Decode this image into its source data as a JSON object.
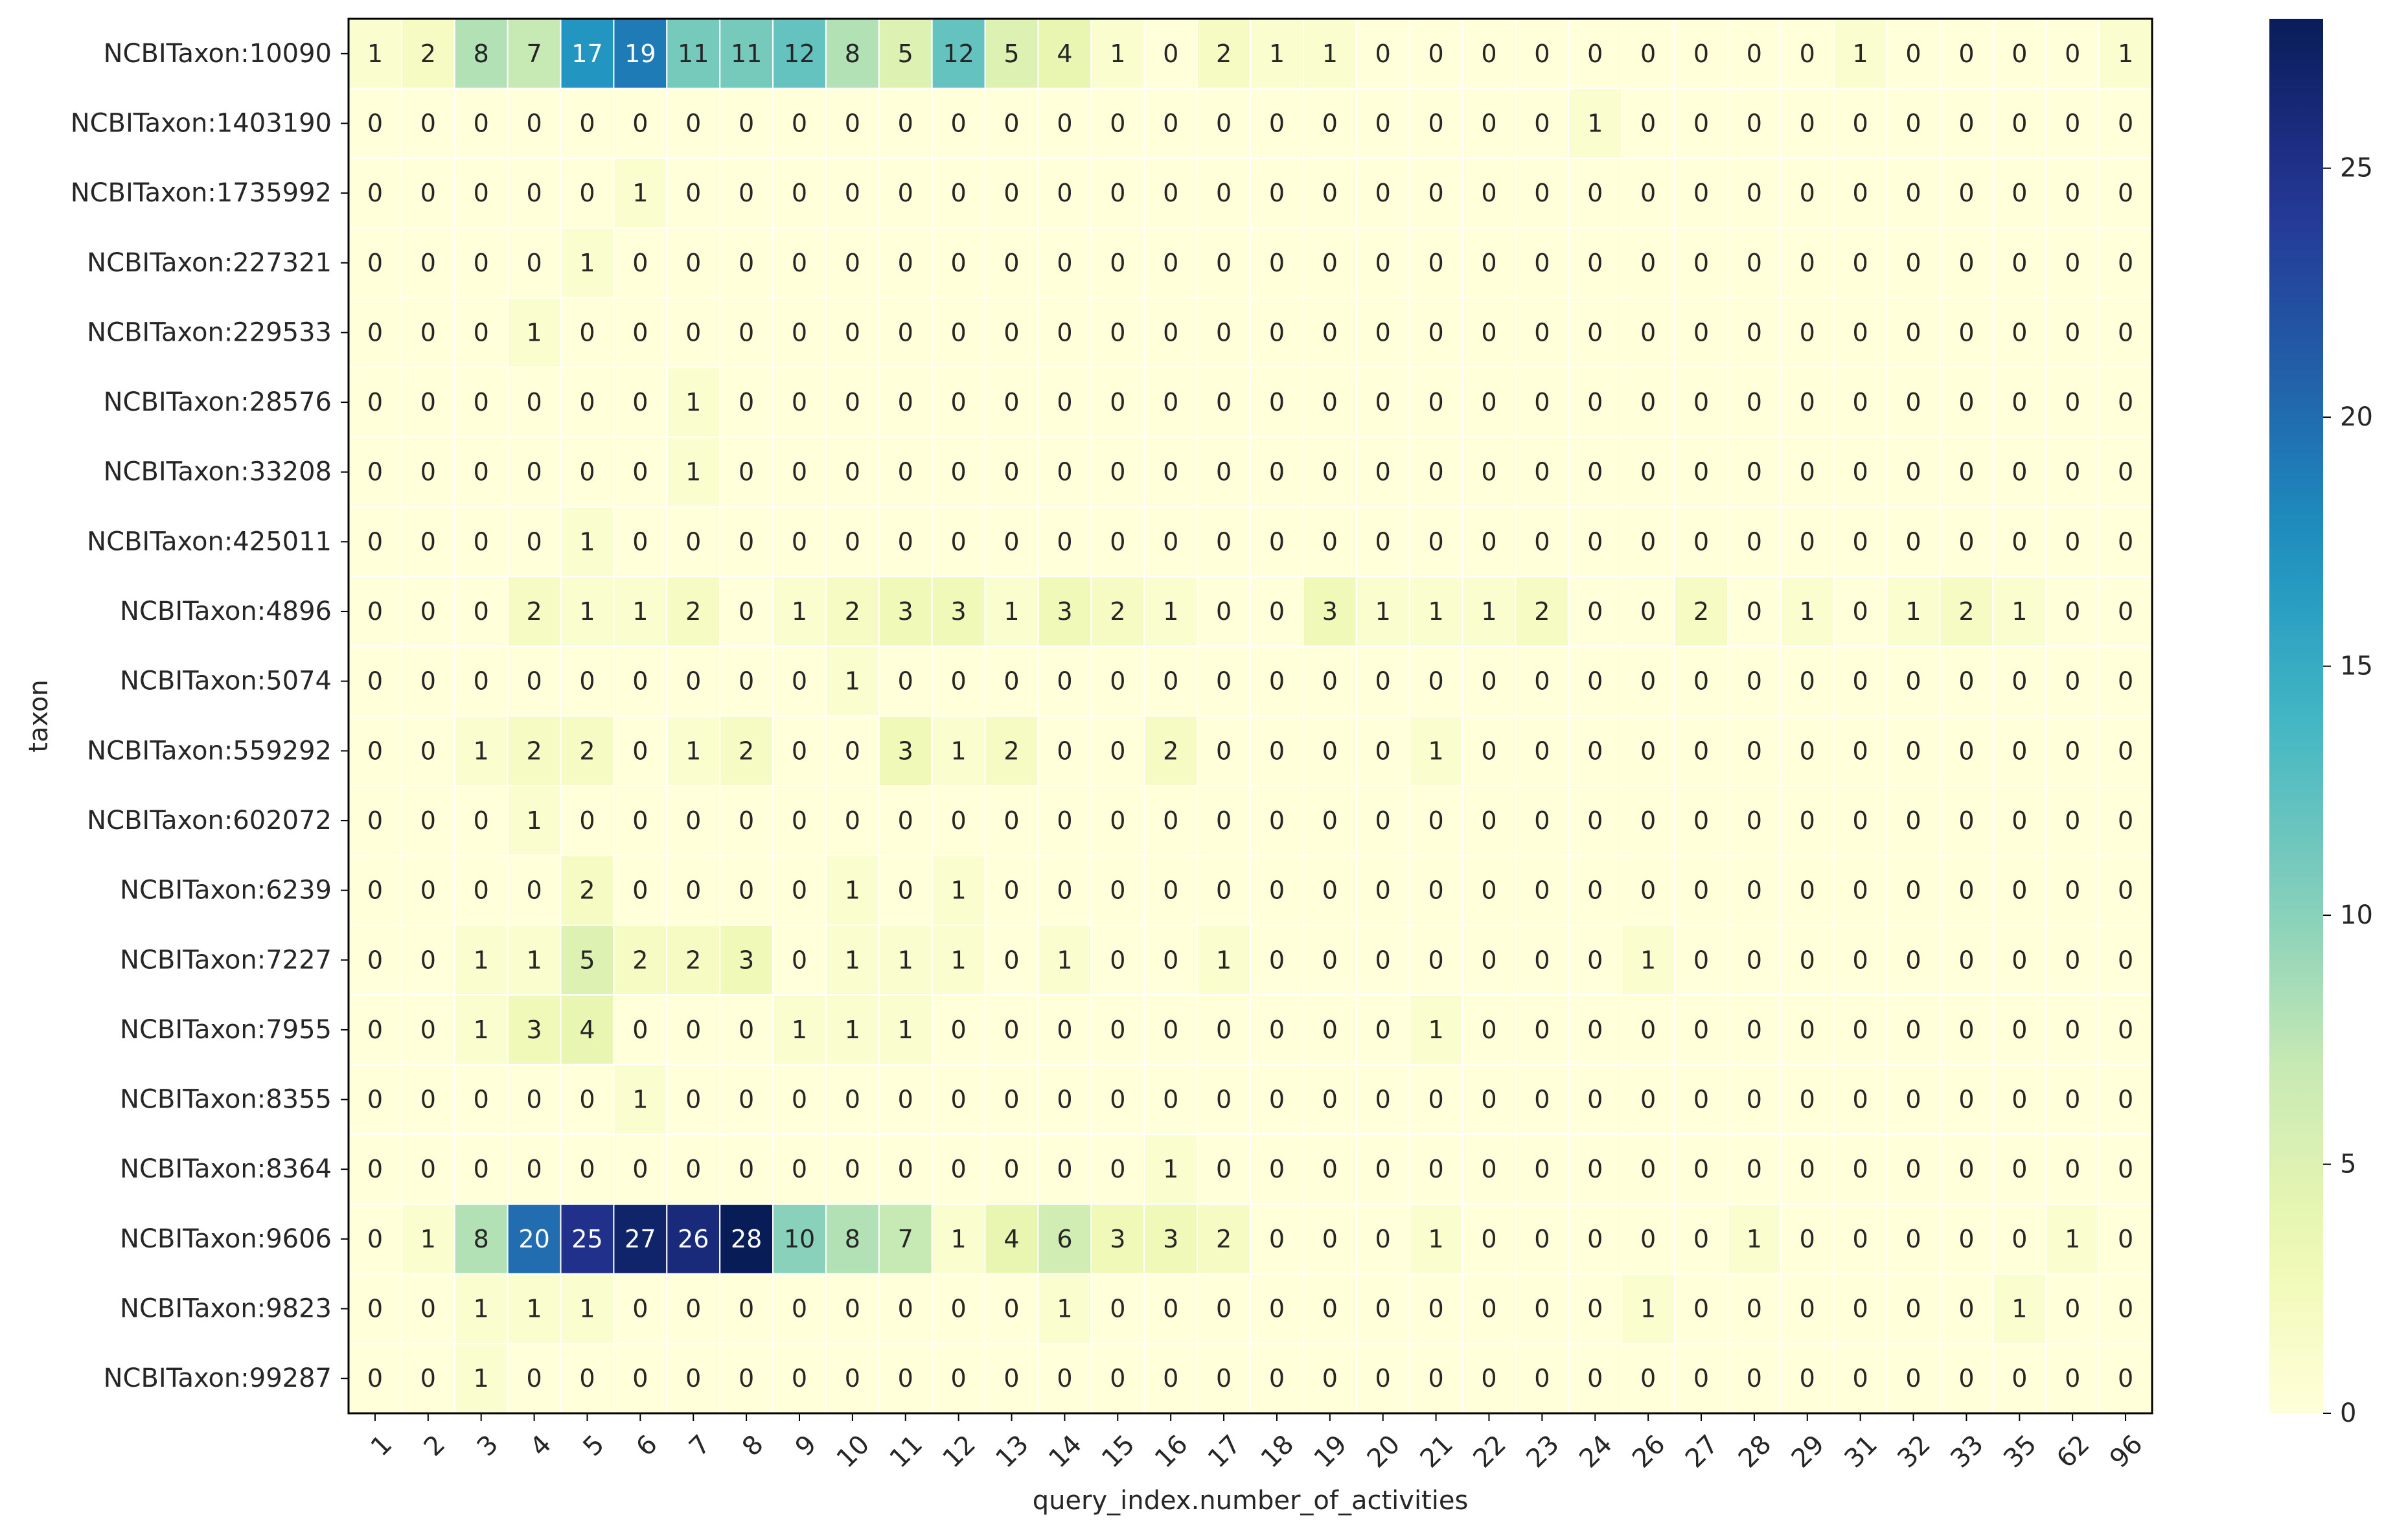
{
  "chart_data": {
    "type": "heatmap",
    "xlabel": "query_index.number_of_activities",
    "ylabel": "taxon",
    "x_categories": [
      "1",
      "2",
      "3",
      "4",
      "5",
      "6",
      "7",
      "8",
      "9",
      "10",
      "11",
      "12",
      "13",
      "14",
      "15",
      "16",
      "17",
      "18",
      "19",
      "20",
      "21",
      "22",
      "23",
      "24",
      "26",
      "27",
      "28",
      "29",
      "31",
      "32",
      "33",
      "35",
      "62",
      "96"
    ],
    "y_categories": [
      "NCBITaxon:10090",
      "NCBITaxon:1403190",
      "NCBITaxon:1735992",
      "NCBITaxon:227321",
      "NCBITaxon:229533",
      "NCBITaxon:28576",
      "NCBITaxon:33208",
      "NCBITaxon:425011",
      "NCBITaxon:4896",
      "NCBITaxon:5074",
      "NCBITaxon:559292",
      "NCBITaxon:602072",
      "NCBITaxon:6239",
      "NCBITaxon:7227",
      "NCBITaxon:7955",
      "NCBITaxon:8355",
      "NCBITaxon:8364",
      "NCBITaxon:9606",
      "NCBITaxon:9823",
      "NCBITaxon:99287"
    ],
    "values": [
      [
        1,
        2,
        8,
        7,
        17,
        19,
        11,
        11,
        12,
        8,
        5,
        12,
        5,
        4,
        1,
        0,
        2,
        1,
        1,
        0,
        0,
        0,
        0,
        0,
        0,
        0,
        0,
        0,
        1,
        0,
        0,
        0,
        0,
        1
      ],
      [
        0,
        0,
        0,
        0,
        0,
        0,
        0,
        0,
        0,
        0,
        0,
        0,
        0,
        0,
        0,
        0,
        0,
        0,
        0,
        0,
        0,
        0,
        0,
        1,
        0,
        0,
        0,
        0,
        0,
        0,
        0,
        0,
        0,
        0
      ],
      [
        0,
        0,
        0,
        0,
        0,
        1,
        0,
        0,
        0,
        0,
        0,
        0,
        0,
        0,
        0,
        0,
        0,
        0,
        0,
        0,
        0,
        0,
        0,
        0,
        0,
        0,
        0,
        0,
        0,
        0,
        0,
        0,
        0,
        0
      ],
      [
        0,
        0,
        0,
        0,
        1,
        0,
        0,
        0,
        0,
        0,
        0,
        0,
        0,
        0,
        0,
        0,
        0,
        0,
        0,
        0,
        0,
        0,
        0,
        0,
        0,
        0,
        0,
        0,
        0,
        0,
        0,
        0,
        0,
        0
      ],
      [
        0,
        0,
        0,
        1,
        0,
        0,
        0,
        0,
        0,
        0,
        0,
        0,
        0,
        0,
        0,
        0,
        0,
        0,
        0,
        0,
        0,
        0,
        0,
        0,
        0,
        0,
        0,
        0,
        0,
        0,
        0,
        0,
        0,
        0
      ],
      [
        0,
        0,
        0,
        0,
        0,
        0,
        1,
        0,
        0,
        0,
        0,
        0,
        0,
        0,
        0,
        0,
        0,
        0,
        0,
        0,
        0,
        0,
        0,
        0,
        0,
        0,
        0,
        0,
        0,
        0,
        0,
        0,
        0,
        0
      ],
      [
        0,
        0,
        0,
        0,
        0,
        0,
        1,
        0,
        0,
        0,
        0,
        0,
        0,
        0,
        0,
        0,
        0,
        0,
        0,
        0,
        0,
        0,
        0,
        0,
        0,
        0,
        0,
        0,
        0,
        0,
        0,
        0,
        0,
        0
      ],
      [
        0,
        0,
        0,
        0,
        1,
        0,
        0,
        0,
        0,
        0,
        0,
        0,
        0,
        0,
        0,
        0,
        0,
        0,
        0,
        0,
        0,
        0,
        0,
        0,
        0,
        0,
        0,
        0,
        0,
        0,
        0,
        0,
        0,
        0
      ],
      [
        0,
        0,
        0,
        2,
        1,
        1,
        2,
        0,
        1,
        2,
        3,
        3,
        1,
        3,
        2,
        1,
        0,
        0,
        3,
        1,
        1,
        1,
        2,
        0,
        0,
        2,
        0,
        1,
        0,
        1,
        2,
        1,
        0,
        0
      ],
      [
        0,
        0,
        0,
        0,
        0,
        0,
        0,
        0,
        0,
        1,
        0,
        0,
        0,
        0,
        0,
        0,
        0,
        0,
        0,
        0,
        0,
        0,
        0,
        0,
        0,
        0,
        0,
        0,
        0,
        0,
        0,
        0,
        0,
        0
      ],
      [
        0,
        0,
        1,
        2,
        2,
        0,
        1,
        2,
        0,
        0,
        3,
        1,
        2,
        0,
        0,
        2,
        0,
        0,
        0,
        0,
        1,
        0,
        0,
        0,
        0,
        0,
        0,
        0,
        0,
        0,
        0,
        0,
        0,
        0
      ],
      [
        0,
        0,
        0,
        1,
        0,
        0,
        0,
        0,
        0,
        0,
        0,
        0,
        0,
        0,
        0,
        0,
        0,
        0,
        0,
        0,
        0,
        0,
        0,
        0,
        0,
        0,
        0,
        0,
        0,
        0,
        0,
        0,
        0,
        0
      ],
      [
        0,
        0,
        0,
        0,
        2,
        0,
        0,
        0,
        0,
        1,
        0,
        1,
        0,
        0,
        0,
        0,
        0,
        0,
        0,
        0,
        0,
        0,
        0,
        0,
        0,
        0,
        0,
        0,
        0,
        0,
        0,
        0,
        0,
        0
      ],
      [
        0,
        0,
        1,
        1,
        5,
        2,
        2,
        3,
        0,
        1,
        1,
        1,
        0,
        1,
        0,
        0,
        1,
        0,
        0,
        0,
        0,
        0,
        0,
        0,
        1,
        0,
        0,
        0,
        0,
        0,
        0,
        0,
        0,
        0
      ],
      [
        0,
        0,
        1,
        3,
        4,
        0,
        0,
        0,
        1,
        1,
        1,
        0,
        0,
        0,
        0,
        0,
        0,
        0,
        0,
        0,
        1,
        0,
        0,
        0,
        0,
        0,
        0,
        0,
        0,
        0,
        0,
        0,
        0,
        0
      ],
      [
        0,
        0,
        0,
        0,
        0,
        1,
        0,
        0,
        0,
        0,
        0,
        0,
        0,
        0,
        0,
        0,
        0,
        0,
        0,
        0,
        0,
        0,
        0,
        0,
        0,
        0,
        0,
        0,
        0,
        0,
        0,
        0,
        0,
        0
      ],
      [
        0,
        0,
        0,
        0,
        0,
        0,
        0,
        0,
        0,
        0,
        0,
        0,
        0,
        0,
        0,
        1,
        0,
        0,
        0,
        0,
        0,
        0,
        0,
        0,
        0,
        0,
        0,
        0,
        0,
        0,
        0,
        0,
        0,
        0
      ],
      [
        0,
        1,
        8,
        20,
        25,
        27,
        26,
        28,
        10,
        8,
        7,
        1,
        4,
        6,
        3,
        3,
        2,
        0,
        0,
        0,
        1,
        0,
        0,
        0,
        0,
        0,
        1,
        0,
        0,
        0,
        0,
        0,
        1,
        0
      ],
      [
        0,
        0,
        1,
        1,
        1,
        0,
        0,
        0,
        0,
        0,
        0,
        0,
        0,
        1,
        0,
        0,
        0,
        0,
        0,
        0,
        0,
        0,
        0,
        0,
        1,
        0,
        0,
        0,
        0,
        0,
        0,
        1,
        0,
        0
      ],
      [
        0,
        0,
        1,
        0,
        0,
        0,
        0,
        0,
        0,
        0,
        0,
        0,
        0,
        0,
        0,
        0,
        0,
        0,
        0,
        0,
        0,
        0,
        0,
        0,
        0,
        0,
        0,
        0,
        0,
        0,
        0,
        0,
        0,
        0
      ]
    ],
    "vmin": 0,
    "vmax": 28,
    "colormap": "YlGnBu",
    "colorbar_ticks": [
      0,
      5,
      10,
      15,
      20,
      25
    ],
    "annotations": true,
    "grid": false,
    "legend_placement": "right (colorbar)"
  }
}
